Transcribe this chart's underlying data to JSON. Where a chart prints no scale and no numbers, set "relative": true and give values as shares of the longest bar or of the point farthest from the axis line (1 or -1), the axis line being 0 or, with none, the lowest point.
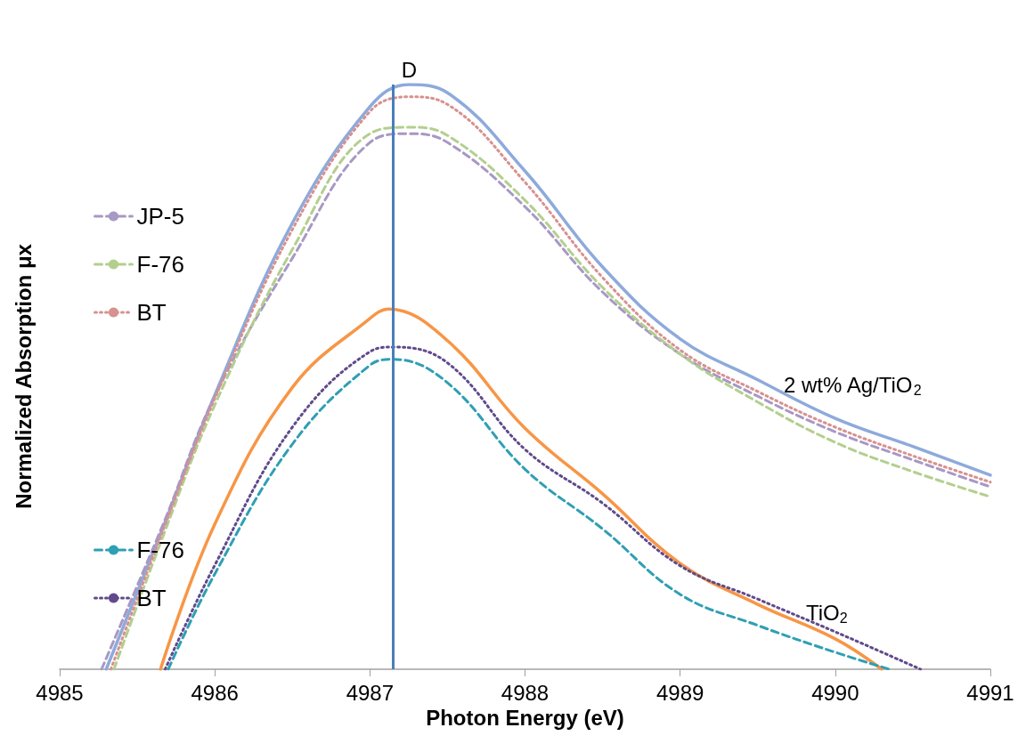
{
  "chart_data": {
    "type": "line",
    "xlabel": "Photon Energy (eV)",
    "ylabel": "Normalized Absorption μx",
    "relative": true,
    "xlim": [
      4985,
      4991
    ],
    "xticks": [
      4985,
      4986,
      4987,
      4988,
      4989,
      4990,
      4991
    ],
    "grid": false,
    "legend": "left",
    "marker": "none",
    "series": [
      {
        "color": "#8eaadb",
        "line_style": "solid",
        "x": [
          4985.3,
          4985.67,
          4986,
          4986.5,
          4987,
          4987.25,
          4987.5,
          4988,
          4988.5,
          4989,
          4989.5,
          4990,
          4990.5,
          4991
        ],
        "values": [
          0,
          0.245,
          0.469,
          0.763,
          0.962,
          1,
          0.986,
          0.852,
          0.688,
          0.565,
          0.495,
          0.429,
          0.381,
          0.332
        ]
      },
      {
        "name": "JP-5",
        "color": "#a898c4",
        "line_style": "dashed",
        "x": [
          4985.27,
          4985.67,
          4986,
          4986.5,
          4987,
          4987.25,
          4987.5,
          4988,
          4988.5,
          4989,
          4989.5,
          4990,
          4990.5,
          4991
        ],
        "values": [
          0,
          0.25,
          0.467,
          0.703,
          0.901,
          0.916,
          0.901,
          0.791,
          0.645,
          0.539,
          0.467,
          0.406,
          0.358,
          0.312
        ]
      },
      {
        "name": "F-76",
        "color": "#b3cf8e",
        "line_style": "dashed",
        "x": [
          4985.35,
          4985.67,
          4986,
          4986.5,
          4987,
          4987.25,
          4987.5,
          4988,
          4988.5,
          4989,
          4989.5,
          4990,
          4990.5,
          4991
        ],
        "values": [
          0,
          0.23,
          0.452,
          0.718,
          0.916,
          0.927,
          0.913,
          0.802,
          0.653,
          0.539,
          0.457,
          0.388,
          0.338,
          0.295
        ]
      },
      {
        "name": "BT",
        "color": "#d7918f",
        "line_style": "dotted",
        "x": [
          4985.33,
          4985.67,
          4986,
          4986.5,
          4987,
          4987.25,
          4987.5,
          4988,
          4988.5,
          4989,
          4989.5,
          4990,
          4990.5,
          4991
        ],
        "values": [
          0,
          0.24,
          0.463,
          0.752,
          0.954,
          0.979,
          0.966,
          0.833,
          0.67,
          0.546,
          0.475,
          0.414,
          0.365,
          0.32
        ]
      },
      {
        "color": "#f79646",
        "line_style": "solid",
        "x": [
          4985.65,
          4986,
          4986.5,
          4987,
          4987.12,
          4987.5,
          4988,
          4988.5,
          4989,
          4989.5,
          4990,
          4990.3
        ],
        "values": [
          0,
          0.248,
          0.482,
          0.6,
          0.616,
          0.562,
          0.412,
          0.3,
          0.181,
          0.111,
          0.052,
          0
        ]
      },
      {
        "name": "F-76",
        "color": "#2f9fb4",
        "line_style": "dashed",
        "x": [
          4985.7,
          4986,
          4986.5,
          4987,
          4987.15,
          4987.5,
          4988,
          4988.5,
          4989,
          4989.5,
          4990,
          4990.35
        ],
        "values": [
          0,
          0.163,
          0.385,
          0.52,
          0.53,
          0.49,
          0.342,
          0.24,
          0.128,
          0.075,
          0.029,
          0
        ]
      },
      {
        "name": "BT",
        "color": "#604a8b",
        "line_style": "dotted",
        "x": [
          4985.68,
          4986,
          4986.5,
          4987,
          4987.15,
          4987.5,
          4988,
          4988.5,
          4989,
          4989.5,
          4990,
          4990.55
        ],
        "values": [
          0,
          0.178,
          0.414,
          0.543,
          0.551,
          0.524,
          0.376,
          0.284,
          0.177,
          0.12,
          0.064,
          0
        ]
      }
    ],
    "ref_lines": [
      {
        "axis": "x",
        "value": 4987.15,
        "label": "D",
        "color": "#4a7ebb"
      }
    ],
    "annotations": [
      "2 wt% Ag/TiO$_{2}$",
      "TiO$_{2}$"
    ]
  }
}
